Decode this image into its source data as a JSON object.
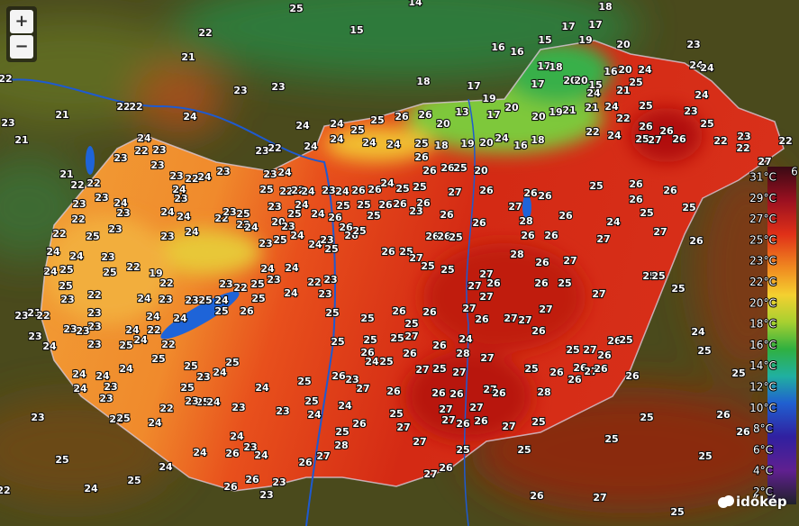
{
  "map": {
    "stations": [
      25,
      14,
      18,
      22,
      15,
      17,
      17,
      21,
      16,
      16,
      15,
      19,
      20,
      23,
      22,
      23,
      23,
      22,
      22,
      21,
      24,
      23,
      21,
      18,
      17,
      19,
      17,
      18,
      17,
      20,
      20,
      15,
      16,
      20,
      24,
      24,
      24,
      25,
      21,
      24,
      24,
      24,
      25,
      26,
      26,
      20,
      13,
      17,
      20,
      20,
      19,
      21,
      21,
      24,
      22,
      25,
      23,
      24,
      23,
      22,
      24,
      24,
      25,
      24,
      24,
      25,
      18,
      19,
      20,
      24,
      16,
      18,
      22,
      24,
      26,
      26,
      25,
      27,
      26,
      25,
      22,
      23,
      22,
      22,
      27,
      24,
      23,
      22,
      23,
      23,
      21,
      22,
      22,
      23,
      24,
      23,
      23,
      23,
      22,
      24,
      23,
      24,
      23,
      24,
      24,
      22,
      23,
      25,
      22,
      25,
      23,
      24,
      22,
      22,
      24,
      24,
      23,
      24,
      23,
      20,
      25,
      24,
      26,
      22,
      22,
      24,
      25,
      23,
      23,
      24,
      24,
      23,
      23,
      25,
      24,
      24,
      23,
      26,
      26,
      25,
      25,
      26,
      26,
      23,
      25,
      26,
      26,
      24,
      25,
      25,
      26,
      26,
      26,
      25,
      20,
      27,
      26,
      26,
      27,
      28,
      26,
      26,
      25,
      26,
      26,
      25,
      26,
      25,
      24,
      26,
      26,
      26,
      27,
      27,
      26,
      26,
      26,
      25,
      25,
      26,
      25,
      26,
      26,
      25,
      27,
      25,
      25,
      27,
      28,
      26,
      27,
      27,
      25,
      25,
      25,
      27,
      27,
      26,
      27,
      26,
      27,
      27,
      27,
      26,
      25,
      26,
      23,
      21,
      22,
      24,
      25,
      24,
      23,
      22,
      19,
      22,
      25,
      25,
      23,
      22,
      24,
      23,
      23,
      25,
      24,
      23,
      22,
      25,
      24,
      23,
      24,
      22,
      23,
      23,
      24,
      25,
      26,
      25,
      24,
      24,
      24,
      24,
      22,
      22,
      23,
      23,
      23,
      23,
      23,
      23,
      24,
      24,
      24,
      23,
      23,
      24,
      24,
      25,
      25,
      25,
      23,
      24,
      25,
      25,
      25,
      24,
      23,
      23,
      22,
      24,
      25,
      24,
      24,
      26,
      23,
      24,
      24,
      24,
      25,
      25,
      26,
      25,
      26,
      25,
      25,
      25,
      27,
      26,
      26,
      24,
      26,
      24,
      25,
      23,
      27,
      26,
      25,
      25,
      24,
      24,
      26,
      26,
      27,
      25,
      28,
      27,
      27,
      26,
      26,
      27,
      26,
      25,
      26,
      25,
      27,
      26,
      26,
      25,
      26,
      27,
      26,
      26,
      26,
      28,
      23,
      25,
      27,
      27,
      27,
      27,
      26,
      26,
      27,
      25,
      25,
      28,
      26,
      27,
      27,
      25,
      25,
      27,
      26,
      26,
      23,
      26,
      23,
      23,
      25,
      24,
      25,
      24,
      22,
      25,
      26,
      25,
      25,
      26,
      26,
      27,
      25,
      24,
      25,
      25
    ]
  },
  "legend": {
    "labels": [
      "31°C",
      "29°C",
      "27°C",
      "25°C",
      "23°C",
      "22°C",
      "20°C",
      "18°C",
      "16°C",
      "14°C",
      "12°C",
      "10°C",
      "8°C",
      "6°C",
      "4°C",
      "2°C"
    ],
    "cut_label": "6"
  },
  "controls": {
    "zoom_in": "+",
    "zoom_out": "−"
  },
  "logo": {
    "text": "időkép"
  }
}
